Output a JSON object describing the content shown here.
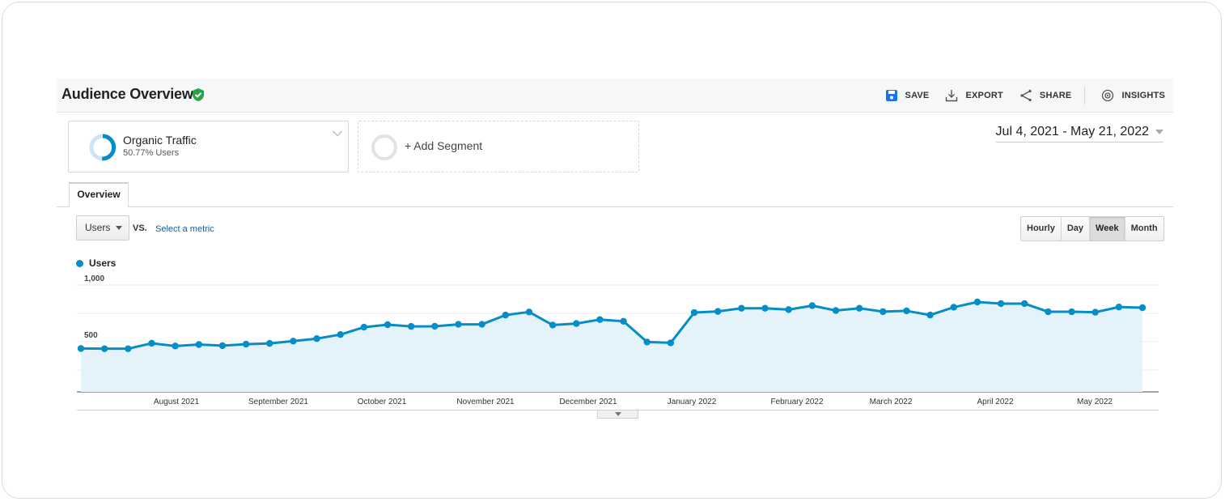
{
  "header": {
    "title": "Audience Overview",
    "actions": {
      "save": "SAVE",
      "export": "EXPORT",
      "share": "SHARE",
      "insights": "INSIGHTS"
    }
  },
  "segments": {
    "primary": {
      "name": "Organic Traffic",
      "sub": "50.77% Users"
    },
    "add_label": "+ Add Segment"
  },
  "date_range": "Jul 4, 2021 - May 21, 2022",
  "tabs": {
    "overview": "Overview"
  },
  "controls": {
    "metric": "Users",
    "vs": "VS.",
    "select_metric": "Select a metric",
    "granularity": [
      "Hourly",
      "Day",
      "Week",
      "Month"
    ],
    "granularity_active": "Week"
  },
  "colors": {
    "series": "#058dc7",
    "fill": "#e4f2fa",
    "verified": "#2aa145",
    "accent_blue": "#1a73e8"
  },
  "chart_data": {
    "type": "line",
    "series": [
      {
        "name": "Users",
        "values": [
          440,
          438,
          438,
          486,
          462,
          475,
          465,
          478,
          485,
          505,
          527,
          563,
          628,
          650,
          635,
          636,
          653,
          653,
          735,
          762,
          647,
          660,
          695,
          680,
          497,
          490,
          757,
          767,
          795,
          795,
          783,
          818,
          775,
          795,
          765,
          772,
          735,
          804,
          850,
          836,
          836,
          764,
          764,
          760,
          806,
          800
        ]
      }
    ],
    "x_tick_labels": [
      "August 2021",
      "September 2021",
      "October 2021",
      "November 2021",
      "December 2021",
      "January 2022",
      "February 2022",
      "March 2022",
      "April 2022",
      "May 2022"
    ],
    "y_tick_labels": [
      "1,000",
      "500"
    ],
    "ylim": [
      0,
      1000
    ],
    "grid": true
  }
}
